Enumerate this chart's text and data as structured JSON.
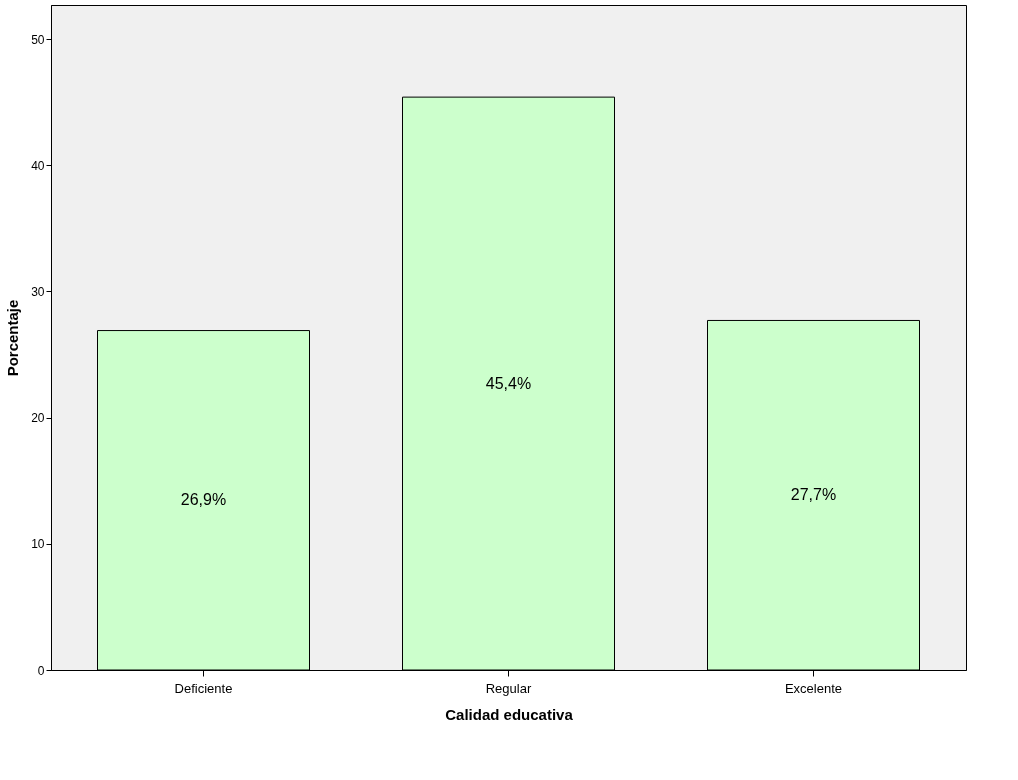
{
  "chart_data": {
    "type": "bar",
    "xlabel": "Calidad educativa",
    "ylabel": "Porcentaje",
    "categories": [
      "Deficiente",
      "Regular",
      "Excelente"
    ],
    "values": [
      26.9,
      45.4,
      27.7
    ],
    "value_labels": [
      "26,9%",
      "45,4%",
      "27,7%"
    ],
    "color": "#ccffcc",
    "ylim": [
      0,
      52.7
    ],
    "yticks": [
      0,
      10,
      20,
      30,
      40,
      50
    ],
    "grid": false
  }
}
